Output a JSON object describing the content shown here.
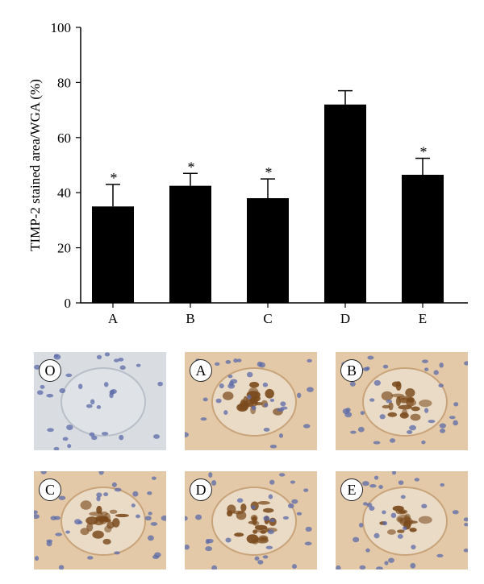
{
  "chart_data": {
    "type": "bar",
    "ylabel": "TIMP-2 stained area/WGA (%)",
    "xlabel": "",
    "categories": [
      "A",
      "B",
      "C",
      "D",
      "E"
    ],
    "values": [
      35,
      42.5,
      38,
      72,
      46.5
    ],
    "errors": [
      8,
      4.5,
      7,
      5,
      6
    ],
    "significance": [
      "*",
      "*",
      "*",
      "",
      "*"
    ],
    "ylim": [
      0,
      100
    ],
    "yticks": [
      0,
      20,
      40,
      60,
      80,
      100
    ],
    "bar_color": "#000000",
    "grid": false
  },
  "micrographs": [
    {
      "label": "O",
      "stain": "negative"
    },
    {
      "label": "A",
      "stain": "strong"
    },
    {
      "label": "B",
      "stain": "strong"
    },
    {
      "label": "C",
      "stain": "strong"
    },
    {
      "label": "D",
      "stain": "very strong"
    },
    {
      "label": "E",
      "stain": "moderate"
    }
  ],
  "colors": {
    "background_tissue_negative": "#d9dde2",
    "background_tissue_stained": "#e3c9a8",
    "nuclei": "#5b6aa8",
    "dab_stain": "#7a4a1c"
  }
}
